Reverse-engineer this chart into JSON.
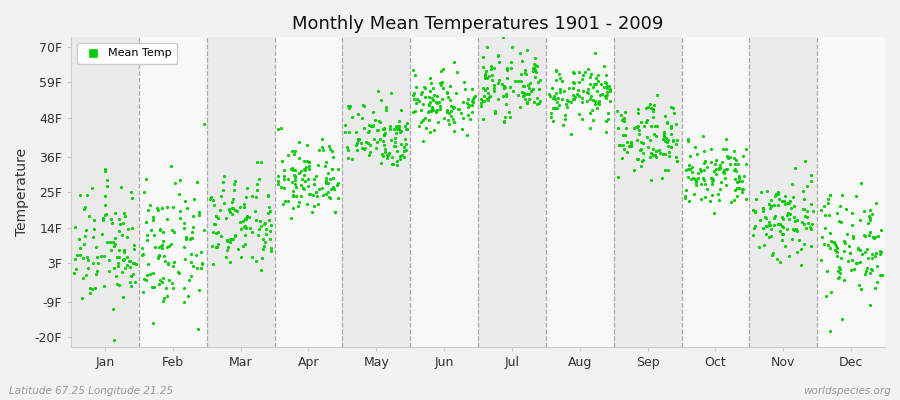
{
  "title": "Monthly Mean Temperatures 1901 - 2009",
  "ylabel": "Temperature",
  "xlabel_bottom_left": "Latitude 67.25 Longitude 21.25",
  "xlabel_bottom_right": "worldspecies.org",
  "yticks": [
    -20,
    -9,
    3,
    14,
    25,
    36,
    48,
    59,
    70
  ],
  "ytick_labels": [
    "-20F",
    "-9F",
    "3F",
    "14F",
    "25F",
    "36F",
    "48F",
    "59F",
    "70F"
  ],
  "ylim": [
    -23,
    73
  ],
  "months": [
    "Jan",
    "Feb",
    "Mar",
    "Apr",
    "May",
    "Jun",
    "Jul",
    "Aug",
    "Sep",
    "Oct",
    "Nov",
    "Dec"
  ],
  "dot_color": "#00CC00",
  "dot_size": 5,
  "background_color": "#f2f2f2",
  "plot_bg_odd": "#ebebeb",
  "plot_bg_even": "#f8f8f8",
  "legend_label": "Mean Temp",
  "n_years": 109,
  "monthly_means_F": [
    7.5,
    7.0,
    15.0,
    29.0,
    43.0,
    53.0,
    58.0,
    55.0,
    42.0,
    30.0,
    17.0,
    9.0
  ],
  "monthly_stds_F": [
    9.5,
    10.0,
    7.5,
    6.0,
    5.5,
    5.0,
    4.5,
    4.5,
    5.5,
    5.5,
    7.0,
    8.5
  ]
}
